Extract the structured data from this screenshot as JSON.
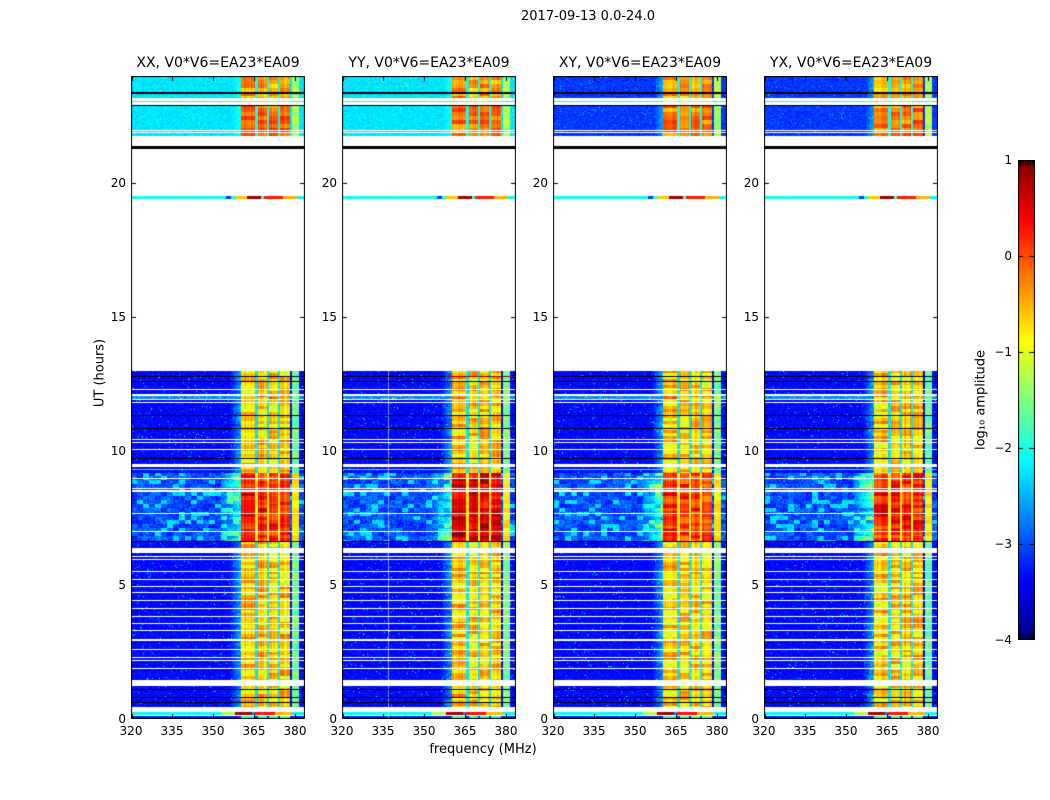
{
  "figure": {
    "title": "2017-09-13 0.0-24.0",
    "background": "#ffffff"
  },
  "chart_data": {
    "type": "heatmap",
    "title": "2017-09-13 0.0-24.0",
    "xlabel": "frequency (MHz)",
    "ylabel": "UT (hours)",
    "x_range": [
      320,
      383.6
    ],
    "y_range": [
      0,
      24
    ],
    "x_ticks": [
      320,
      335,
      350,
      365,
      380
    ],
    "y_ticks": [
      0,
      5,
      10,
      15,
      20
    ],
    "colorbar": {
      "label": "log₁₀ amplitude",
      "range": [
        -4,
        1
      ],
      "tick_values": [
        1,
        0,
        -1,
        -2,
        -3,
        -4
      ],
      "tick_labels": [
        "1",
        "0",
        "−1",
        "−2",
        "−3",
        "−4"
      ],
      "colormap": "jet"
    },
    "panels": [
      {
        "pol": "XX",
        "title": "XX, V0*V6=EA23*EA09",
        "topBright": true,
        "hotBoost": 0,
        "vline": false,
        "seed": 11
      },
      {
        "pol": "YY",
        "title": "YY, V0*V6=EA23*EA09",
        "topBright": true,
        "hotBoost": 0.28,
        "vline": true,
        "seed": 23
      },
      {
        "pol": "XY",
        "title": "XY, V0*V6=EA23*EA09",
        "topBright": false,
        "hotBoost": -0.12,
        "vline": false,
        "seed": 37
      },
      {
        "pol": "YX",
        "title": "YX, V0*V6=EA23*EA09",
        "topBright": false,
        "hotBoost": -0.05,
        "vline": false,
        "seed": 49
      }
    ],
    "rfi_bands": [
      [
        360.2,
        365.4
      ],
      [
        366.4,
        369.7
      ],
      [
        370.4,
        373.6
      ],
      [
        374.4,
        378.2
      ]
    ],
    "weak_band": [
      378.9,
      381.3
    ],
    "vline_freq": 336.8,
    "levels": {
      "noise_floor": -3.35,
      "top_band_bright": -2.25,
      "top_band_dark": -3.1,
      "rfi_typical": -0.9,
      "hot_background": -2.95,
      "hot_rfi": 0.1
    },
    "stripes": [
      [
        23.95,
        23.4,
        "top"
      ],
      [
        23.4,
        23.33,
        "black"
      ],
      [
        23.33,
        23.18,
        "top"
      ],
      [
        23.08,
        23.03,
        "cyanline"
      ],
      [
        22.92,
        22.87,
        "black"
      ],
      [
        22.87,
        22.0,
        "top2"
      ],
      [
        21.96,
        21.9,
        "top2"
      ],
      [
        21.86,
        21.76,
        "top2"
      ],
      [
        21.38,
        21.28,
        "black"
      ],
      [
        19.52,
        19.41,
        "rline"
      ],
      [
        12.98,
        12.81,
        "n"
      ],
      [
        12.81,
        12.76,
        "blackR"
      ],
      [
        12.76,
        12.63,
        "n"
      ],
      [
        12.63,
        12.59,
        "black"
      ],
      [
        12.59,
        12.31,
        "n"
      ],
      [
        12.28,
        12.13,
        "n"
      ],
      [
        12.07,
        11.95,
        "spk"
      ],
      [
        11.91,
        11.85,
        "n"
      ],
      [
        11.81,
        11.35,
        "n"
      ],
      [
        11.35,
        11.31,
        "black"
      ],
      [
        11.31,
        10.85,
        "n"
      ],
      [
        10.85,
        10.81,
        "black"
      ],
      [
        10.81,
        10.45,
        "n"
      ],
      [
        10.41,
        10.33,
        "n"
      ],
      [
        10.29,
        10.09,
        "n"
      ],
      [
        10.03,
        9.75,
        "n"
      ],
      [
        9.75,
        9.71,
        "black"
      ],
      [
        9.71,
        9.53,
        "n"
      ],
      [
        9.39,
        9.33,
        "n"
      ],
      [
        9.33,
        9.29,
        "cyanline"
      ],
      [
        9.29,
        9.17,
        "n"
      ],
      [
        9.17,
        8.99,
        "hot"
      ],
      [
        8.95,
        8.63,
        "hot"
      ],
      [
        8.59,
        8.53,
        "hot"
      ],
      [
        8.49,
        7.69,
        "hot"
      ],
      [
        7.64,
        7.03,
        "hot"
      ],
      [
        6.99,
        6.65,
        "hot"
      ],
      [
        6.65,
        6.59,
        "black"
      ],
      [
        6.59,
        6.39,
        "n"
      ],
      [
        6.21,
        6.09,
        "n"
      ],
      [
        6.05,
        5.99,
        "n"
      ],
      [
        5.95,
        5.65,
        "n"
      ],
      [
        5.65,
        5.59,
        "spk2"
      ],
      [
        5.59,
        5.51,
        "n"
      ],
      [
        5.47,
        5.21,
        "n"
      ],
      [
        5.17,
        4.98,
        "n"
      ],
      [
        4.93,
        4.73,
        "n"
      ],
      [
        4.69,
        4.45,
        "n"
      ],
      [
        4.41,
        4.13,
        "n"
      ],
      [
        4.09,
        3.85,
        "n"
      ],
      [
        3.81,
        3.57,
        "n"
      ],
      [
        3.53,
        3.31,
        "n"
      ],
      [
        3.27,
        2.97,
        "n"
      ],
      [
        2.93,
        2.63,
        "n"
      ],
      [
        2.59,
        2.31,
        "n"
      ],
      [
        2.27,
        2.21,
        "n"
      ],
      [
        2.17,
        1.89,
        "n"
      ],
      [
        1.85,
        1.45,
        "n"
      ],
      [
        1.23,
        1.13,
        "n"
      ],
      [
        1.13,
        1.09,
        "black"
      ],
      [
        1.09,
        0.83,
        "n"
      ],
      [
        0.83,
        0.79,
        "black"
      ],
      [
        0.79,
        0.63,
        "n"
      ],
      [
        0.63,
        0.59,
        "black"
      ],
      [
        0.59,
        0.45,
        "n"
      ],
      [
        0.27,
        0.15,
        "rline2"
      ],
      [
        0.11,
        0.03,
        "nline"
      ]
    ],
    "rline_segments": [
      [
        0,
        0.545,
        -2.05
      ],
      [
        0.545,
        0.575,
        -3.1
      ],
      [
        0.575,
        0.6,
        -2.0
      ],
      [
        0.6,
        0.665,
        -0.6
      ],
      [
        0.665,
        0.75,
        0.85
      ],
      [
        0.75,
        0.765,
        -1.9
      ],
      [
        0.765,
        0.875,
        0.25
      ],
      [
        0.875,
        0.955,
        -0.5
      ],
      [
        0.955,
        1,
        -2.1
      ]
    ],
    "rline2_segments": [
      [
        0,
        0.52,
        -2.1
      ],
      [
        0.52,
        0.6,
        -1.25
      ],
      [
        0.6,
        0.695,
        0.8
      ],
      [
        0.695,
        0.715,
        -2.7
      ],
      [
        0.715,
        0.83,
        0.3
      ],
      [
        0.83,
        0.925,
        -0.55
      ],
      [
        0.925,
        1,
        -2.15
      ]
    ],
    "content_summary": "Four dynamic-spectrum (frequency vs UT time) panels for cross-correlation products XX, YY, XY, YX of V0*V6=EA23*EA09 on 2017-09-13, 0-24 h. Blue noise background (log10 amplitude ~ -3.3) with strong orange/red RFI in vertical bands between ~360 and 381 MHz, horizontal white data gaps, black flagged rows, a bright saturated interval near 6.6-9.2 h, cyan bands at the top near 22-24 h, a thin colored scan line near 19.5 h, and jet colorbar from -4 to 1."
  }
}
